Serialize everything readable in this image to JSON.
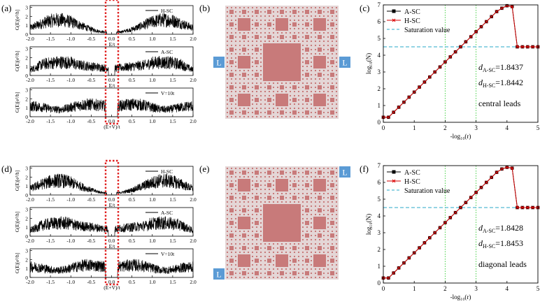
{
  "figure": {
    "rows": [
      {
        "row_id": "top",
        "conductance": {
          "label": "(a)",
          "panels": [
            {
              "legend": "H-SC",
              "ylabel": "G(E)[e²/h]",
              "xlabel": "E/t",
              "shape": "h"
            },
            {
              "legend": "A-SC",
              "ylabel": "G(E)[e²/h]",
              "xlabel": "E/t",
              "shape": "a"
            },
            {
              "legend": "V=10t",
              "ylabel": "G(E)[e²/h]",
              "xlabel": "(E+V)/t",
              "shape": "v"
            }
          ],
          "xticks": [
            "-2.0",
            "-1.5",
            "-1.0",
            "-0.5",
            "0.0",
            "0.5",
            "1.0",
            "1.5",
            "2.0"
          ],
          "yticks": [
            "0",
            "1",
            "2",
            "3"
          ]
        },
        "carpet": {
          "label": "(b)",
          "lead_left": "L",
          "lead_right": "L",
          "leads": "central"
        },
        "scaling": {
          "label": "(c)",
          "d_A": "=1.8437",
          "d_H": "=1.8442",
          "leads_text": "central leads"
        }
      },
      {
        "row_id": "bottom",
        "conductance": {
          "label": "(d)",
          "panels": [
            {
              "legend": "H-SC",
              "ylabel": "G(E)[e²/h]",
              "xlabel": "E/t",
              "shape": "h"
            },
            {
              "legend": "A-SC",
              "ylabel": "G(E)[e²/h]",
              "xlabel": "E/t",
              "shape": "a"
            },
            {
              "legend": "V=10t",
              "ylabel": "G(E)[e²/h]",
              "xlabel": "(E+V)/t",
              "shape": "v"
            }
          ],
          "xticks": [
            "-2.0",
            "-1.5",
            "-1.0",
            "-0.5",
            "0.0",
            "0.5",
            "1.0",
            "1.5",
            "2.0"
          ],
          "yticks": [
            "0",
            "1",
            "2",
            "3"
          ]
        },
        "carpet": {
          "label": "(e)",
          "lead_left": "L",
          "lead_right": "L",
          "leads": "diagonal"
        },
        "scaling": {
          "label": "(f)",
          "d_A": "=1.8428",
          "d_H": "=1.8453",
          "leads_text": "diagonal leads"
        }
      }
    ],
    "colors": {
      "carpet_background": "#e4d6d6",
      "carpet_hole": "#c87a7a",
      "lead_box": "#5b9bd5",
      "series": "#b00000",
      "saturation": "#29a9c9",
      "vgrid": "#33cc33",
      "highlight_box": "#e02020"
    }
  },
  "chart_data": [
    {
      "type": "line",
      "title": "(c)",
      "xlabel": "-log₁₀(r)",
      "ylabel": "log₁₀(N)",
      "xlim": [
        0,
        5
      ],
      "ylim": [
        0,
        7
      ],
      "xticks": [
        0,
        1,
        2,
        3,
        4,
        5
      ],
      "yticks": [
        0,
        1,
        2,
        3,
        4,
        5,
        6,
        7
      ],
      "vlines": [
        2,
        3
      ],
      "x": [
        0,
        0.167,
        0.333,
        0.5,
        0.667,
        0.833,
        1.0,
        1.167,
        1.333,
        1.5,
        1.667,
        1.833,
        2.0,
        2.167,
        2.333,
        2.5,
        2.667,
        2.833,
        3.0,
        3.167,
        3.333,
        3.5,
        3.667,
        3.833,
        4.0,
        4.167,
        4.333,
        4.5,
        4.667,
        4.833,
        5.0
      ],
      "series": [
        {
          "name": "A-SC",
          "marker": "square",
          "values": [
            0.3,
            0.3,
            0.6,
            0.9,
            1.2,
            1.5,
            1.8,
            2.1,
            2.4,
            2.7,
            3.0,
            3.3,
            3.6,
            3.9,
            4.2,
            4.5,
            4.8,
            5.1,
            5.4,
            5.7,
            6.0,
            6.3,
            6.6,
            6.8,
            6.95,
            6.9,
            4.5,
            4.5,
            4.5,
            4.5,
            4.5
          ]
        },
        {
          "name": "H-SC",
          "marker": "cross",
          "values": [
            0.3,
            0.3,
            0.6,
            0.9,
            1.2,
            1.5,
            1.8,
            2.1,
            2.4,
            2.7,
            3.0,
            3.3,
            3.6,
            3.9,
            4.2,
            4.5,
            4.8,
            5.1,
            5.4,
            5.7,
            6.0,
            6.3,
            6.6,
            6.8,
            6.95,
            6.9,
            4.5,
            4.5,
            4.5,
            4.5,
            4.5
          ]
        }
      ],
      "saturation": {
        "name": "Saturation value",
        "y": 4.5
      }
    },
    {
      "type": "line",
      "title": "(f)",
      "xlabel": "-log₁₀(r)",
      "ylabel": "log₁₀(N)",
      "xlim": [
        0,
        5
      ],
      "ylim": [
        0,
        7
      ],
      "xticks": [
        0,
        1,
        2,
        3,
        4,
        5
      ],
      "yticks": [
        0,
        1,
        2,
        3,
        4,
        5,
        6,
        7
      ],
      "vlines": [
        2,
        3
      ],
      "x": [
        0,
        0.167,
        0.333,
        0.5,
        0.667,
        0.833,
        1.0,
        1.167,
        1.333,
        1.5,
        1.667,
        1.833,
        2.0,
        2.167,
        2.333,
        2.5,
        2.667,
        2.833,
        3.0,
        3.167,
        3.333,
        3.5,
        3.667,
        3.833,
        4.0,
        4.167,
        4.333,
        4.5,
        4.667,
        4.833,
        5.0
      ],
      "series": [
        {
          "name": "A-SC",
          "marker": "square",
          "values": [
            0.3,
            0.3,
            0.6,
            0.9,
            1.2,
            1.5,
            1.8,
            2.1,
            2.4,
            2.7,
            3.0,
            3.3,
            3.6,
            3.9,
            4.2,
            4.5,
            4.8,
            5.1,
            5.4,
            5.7,
            6.0,
            6.3,
            6.6,
            6.8,
            6.9,
            6.85,
            4.5,
            4.5,
            4.5,
            4.5,
            4.5
          ]
        },
        {
          "name": "H-SC",
          "marker": "cross",
          "values": [
            0.3,
            0.3,
            0.6,
            0.9,
            1.2,
            1.5,
            1.8,
            2.1,
            2.4,
            2.7,
            3.0,
            3.3,
            3.6,
            3.9,
            4.2,
            4.5,
            4.8,
            5.1,
            5.4,
            5.7,
            6.0,
            6.3,
            6.6,
            6.8,
            6.9,
            6.85,
            4.5,
            4.5,
            4.5,
            4.5,
            4.5
          ]
        }
      ],
      "saturation": {
        "name": "Saturation value",
        "y": 4.5
      }
    }
  ]
}
